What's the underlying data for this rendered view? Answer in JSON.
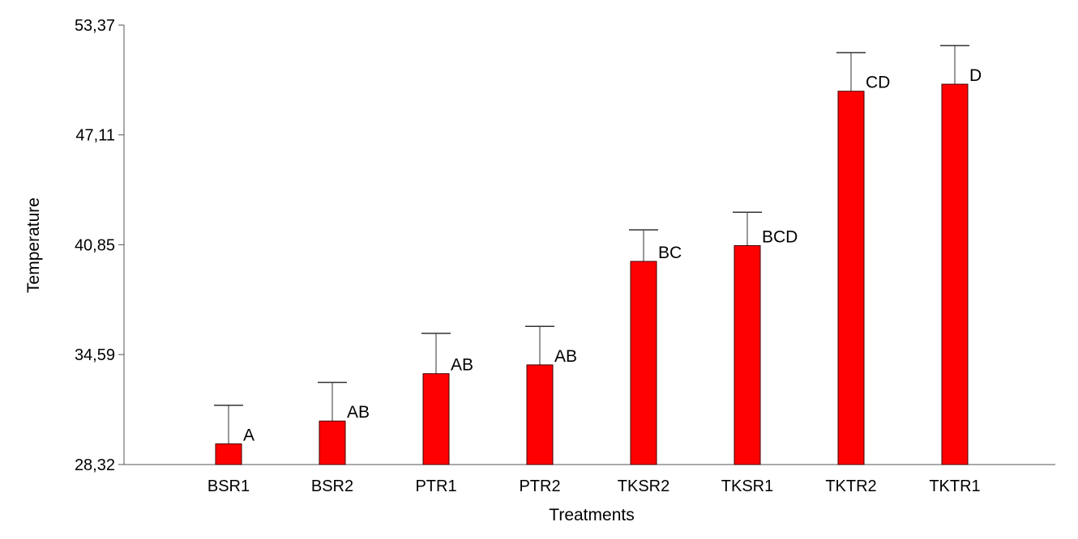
{
  "chart_data": {
    "type": "bar",
    "xlabel": "Treatments",
    "ylabel": "Temperature",
    "ylim": [
      28.32,
      53.37
    ],
    "yticks": [
      "53,37",
      "47,11",
      "40,85",
      "34,59",
      "28,32"
    ],
    "ytick_values": [
      53.37,
      47.11,
      40.85,
      34.59,
      28.32
    ],
    "categories": [
      "BSR1",
      "BSR2",
      "PTR1",
      "PTR2",
      "TKSR2",
      "TKSR1",
      "TKTR2",
      "TKTR1"
    ],
    "values": [
      29.5,
      30.8,
      33.5,
      34.0,
      39.9,
      40.8,
      49.6,
      50.0
    ],
    "error_upper": [
      31.7,
      33.0,
      35.8,
      36.2,
      41.7,
      42.7,
      51.8,
      52.2
    ],
    "significance": [
      "A",
      "AB",
      "AB",
      "AB",
      "BC",
      "BCD",
      "CD",
      "D"
    ],
    "bar_color": "#ff0000",
    "grid": false
  }
}
